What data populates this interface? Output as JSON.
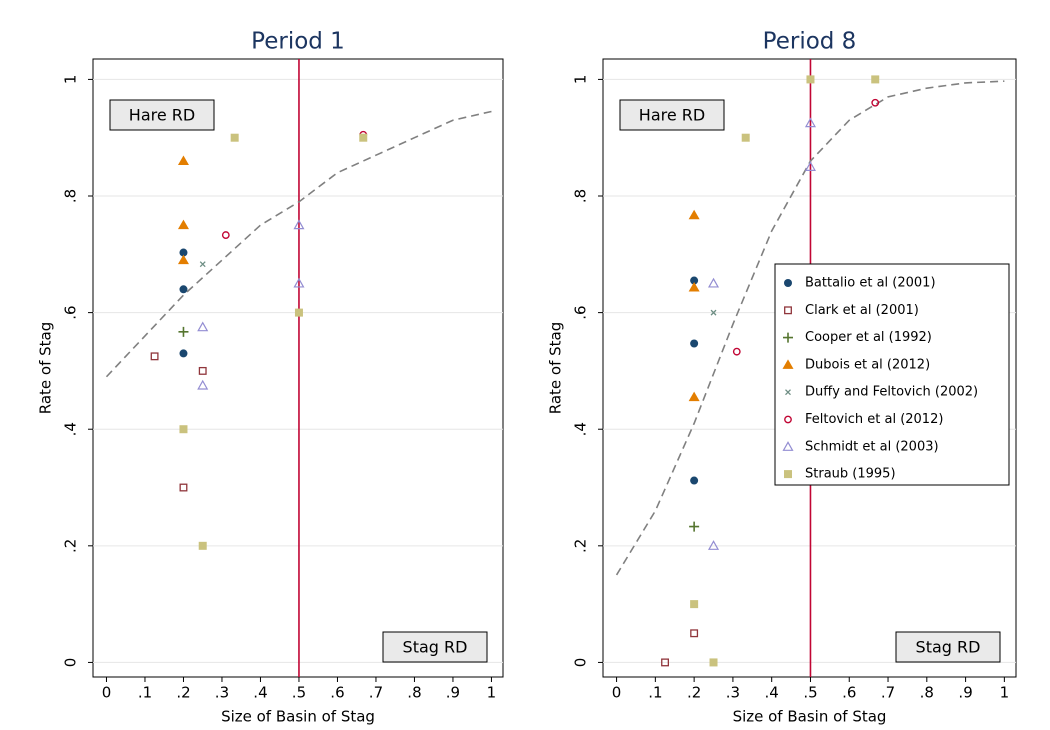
{
  "chart_data": [
    {
      "type": "scatter",
      "title": "Period 1",
      "x_label": "Size of Basin of Stag",
      "y_label": "Rate of Stag",
      "xlim": [
        -0.035,
        1.03
      ],
      "ylim": [
        -0.025,
        1.035
      ],
      "xticks": [
        0,
        {
          "value": 0.1,
          "label": ".1"
        },
        {
          "value": 0.2,
          "label": ".2"
        },
        {
          "value": 0.3,
          "label": ".3"
        },
        {
          "value": 0.4,
          "label": ".4"
        },
        {
          "value": 0.5,
          "label": ".5"
        },
        {
          "value": 0.6,
          "label": ".6"
        },
        {
          "value": 0.7,
          "label": ".7"
        },
        {
          "value": 0.8,
          "label": ".8"
        },
        {
          "value": 0.9,
          "label": ".9"
        },
        1
      ],
      "yticks": [
        0,
        {
          "value": 0.2,
          "label": ".2"
        },
        {
          "value": 0.4,
          "label": ".4"
        },
        {
          "value": 0.6,
          "label": ".6"
        },
        {
          "value": 0.8,
          "label": ".8"
        },
        1
      ],
      "grid": true,
      "vline": 0.5,
      "vline_color": "#c10534",
      "annotations": [
        "Hare RD",
        "Stag RD"
      ],
      "fit": {
        "color": "#808080",
        "x": [
          0,
          0.1,
          0.2,
          0.3,
          0.4,
          0.5,
          0.6,
          0.7,
          0.8,
          0.9,
          1
        ],
        "values": [
          0.49,
          0.56,
          0.63,
          0.69,
          0.75,
          0.79,
          0.84,
          0.87,
          0.9,
          0.93,
          0.945
        ]
      },
      "series": [
        {
          "marker": "circle",
          "color": "#1a476f",
          "x": [
            0.2,
            0.2,
            0.2
          ],
          "values": [
            0.703,
            0.64,
            0.53
          ]
        },
        {
          "marker": "square-hollow",
          "color": "#90353b",
          "x": [
            0.125,
            0.25,
            0.2
          ],
          "values": [
            0.525,
            0.5,
            0.3
          ]
        },
        {
          "marker": "plus",
          "color": "#55752f",
          "x": [
            0.2
          ],
          "values": [
            0.567
          ]
        },
        {
          "marker": "triangle",
          "color": "#e37e00",
          "x": [
            0.2,
            0.2,
            0.2
          ],
          "values": [
            0.86,
            0.75,
            0.69
          ]
        },
        {
          "marker": "x",
          "color": "#6e8e84",
          "x": [
            0.25
          ],
          "values": [
            0.683
          ]
        },
        {
          "marker": "circle-hollow",
          "color": "#c10534",
          "x": [
            0.31,
            0.667
          ],
          "values": [
            0.733,
            0.905
          ]
        },
        {
          "marker": "triangle-hollow",
          "color": "#938dd2",
          "x": [
            0.25,
            0.25,
            0.5,
            0.5
          ],
          "values": [
            0.575,
            0.475,
            0.75,
            0.65
          ]
        },
        {
          "marker": "square",
          "color": "#cac27e",
          "x": [
            0.333,
            0.667,
            0.5,
            0.2,
            0.25
          ],
          "values": [
            0.9,
            0.9,
            0.6,
            0.4,
            0.2
          ]
        }
      ]
    },
    {
      "type": "scatter",
      "title": "Period 8",
      "x_label": "Size of Basin of Stag",
      "y_label": "Rate of Stag",
      "xlim": [
        -0.035,
        1.03
      ],
      "ylim": [
        -0.025,
        1.035
      ],
      "xticks": [
        0,
        {
          "value": 0.1,
          "label": ".1"
        },
        {
          "value": 0.2,
          "label": ".2"
        },
        {
          "value": 0.3,
          "label": ".3"
        },
        {
          "value": 0.4,
          "label": ".4"
        },
        {
          "value": 0.5,
          "label": ".5"
        },
        {
          "value": 0.6,
          "label": ".6"
        },
        {
          "value": 0.7,
          "label": ".7"
        },
        {
          "value": 0.8,
          "label": ".8"
        },
        {
          "value": 0.9,
          "label": ".9"
        },
        1
      ],
      "yticks": [
        0,
        {
          "value": 0.2,
          "label": ".2"
        },
        {
          "value": 0.4,
          "label": ".4"
        },
        {
          "value": 0.6,
          "label": ".6"
        },
        {
          "value": 0.8,
          "label": ".8"
        },
        1
      ],
      "grid": true,
      "vline": 0.5,
      "vline_color": "#c10534",
      "legend": "right",
      "annotations": [
        "Hare RD",
        "Stag RD"
      ],
      "fit": {
        "color": "#808080",
        "x": [
          0,
          0.1,
          0.2,
          0.3,
          0.4,
          0.5,
          0.6,
          0.7,
          0.8,
          0.9,
          1
        ],
        "values": [
          0.15,
          0.26,
          0.41,
          0.58,
          0.74,
          0.86,
          0.93,
          0.97,
          0.985,
          0.994,
          0.997
        ]
      },
      "series": [
        {
          "name": "Battalio et al (2001)",
          "marker": "circle",
          "color": "#1a476f",
          "x": [
            0.2,
            0.2,
            0.2
          ],
          "values": [
            0.655,
            0.547,
            0.312
          ]
        },
        {
          "name": "Clark et al (2001)",
          "marker": "square-hollow",
          "color": "#90353b",
          "x": [
            0.125,
            0.2
          ],
          "values": [
            0,
            0.05
          ]
        },
        {
          "name": "Cooper et al (1992)",
          "marker": "plus",
          "color": "#55752f",
          "x": [
            0.2
          ],
          "values": [
            0.233
          ]
        },
        {
          "name": "Dubois et al (2012)",
          "marker": "triangle",
          "color": "#e37e00",
          "x": [
            0.2,
            0.2,
            0.2
          ],
          "values": [
            0.767,
            0.643,
            0.455
          ]
        },
        {
          "name": "Duffy and Feltovich (2002)",
          "marker": "x",
          "color": "#6e8e84",
          "x": [
            0.25
          ],
          "values": [
            0.6
          ]
        },
        {
          "name": "Feltovich et al (2012)",
          "marker": "circle-hollow",
          "color": "#c10534",
          "x": [
            0.31,
            0.667
          ],
          "values": [
            0.533,
            0.96
          ]
        },
        {
          "name": "Schmidt et al (2003)",
          "marker": "triangle-hollow",
          "color": "#938dd2",
          "x": [
            0.25,
            0.25,
            0.5,
            0.5
          ],
          "values": [
            0.65,
            0.2,
            0.925,
            0.85
          ]
        },
        {
          "name": "Straub (1995)",
          "marker": "square",
          "color": "#cac27e",
          "x": [
            0.333,
            0.5,
            0.667,
            0.2,
            0.25
          ],
          "values": [
            0.9,
            1,
            1,
            0.1,
            0
          ]
        }
      ]
    }
  ]
}
